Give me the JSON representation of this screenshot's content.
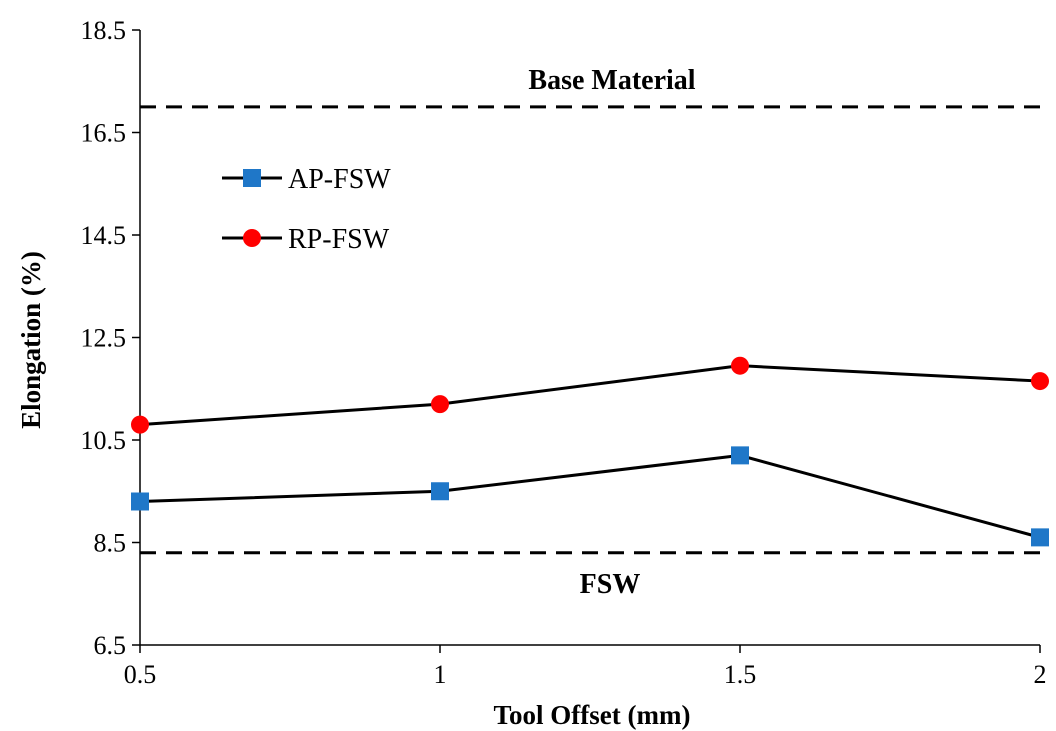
{
  "chart_data": {
    "type": "line",
    "xlabel": "Tool Offset (mm)",
    "ylabel": "Elongation (%)",
    "xlim": [
      0.5,
      2
    ],
    "ylim": [
      6.5,
      18.5
    ],
    "x_ticks": [
      "0.5",
      "1",
      "1.5",
      "2"
    ],
    "y_ticks": [
      "6.5",
      "8.5",
      "10.5",
      "12.5",
      "14.5",
      "16.5",
      "18.5"
    ],
    "x": [
      0.5,
      1,
      1.5,
      2
    ],
    "series": [
      {
        "name": "AP-FSW",
        "values": [
          9.3,
          9.5,
          10.2,
          8.6
        ],
        "marker": "square",
        "marker_color": "#1f77c8"
      },
      {
        "name": "RP-FSW",
        "values": [
          10.8,
          11.2,
          11.95,
          11.65
        ],
        "marker": "circle",
        "marker_color": "#ff0000"
      }
    ],
    "reference_lines": [
      {
        "label": "Base Material",
        "value": 17.0
      },
      {
        "label": "FSW",
        "value": 8.3
      }
    ],
    "legend": "top-left",
    "grid": false
  }
}
